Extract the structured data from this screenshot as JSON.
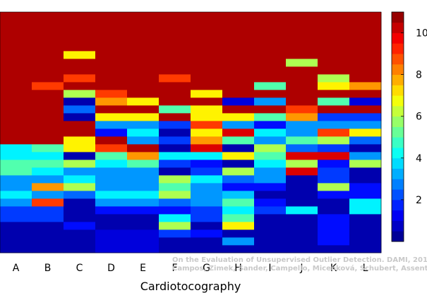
{
  "chart_data": {
    "type": "heatmap",
    "title": "",
    "xlabel": "Cardiotocography",
    "ylabel": "",
    "categories": [
      "A",
      "B",
      "C",
      "D",
      "E",
      "F",
      "G",
      "H",
      "I",
      "J",
      "K",
      "L"
    ],
    "row_count": 31,
    "value_range": [
      0,
      11
    ],
    "colorbar": {
      "ticks": [
        "2",
        "4",
        "6",
        "8",
        "10"
      ],
      "tick_values": [
        2,
        4,
        6,
        8,
        10
      ]
    },
    "columns": [
      {
        "name": "A",
        "segments": [
          [
            0,
            4,
            0.5
          ],
          [
            4,
            6,
            2
          ],
          [
            6,
            7,
            3
          ],
          [
            7,
            8,
            4
          ],
          [
            8,
            10,
            3
          ],
          [
            10,
            12,
            5
          ],
          [
            12,
            14,
            4
          ],
          [
            14,
            31,
            10.5
          ]
        ]
      },
      {
        "name": "B",
        "segments": [
          [
            0,
            4,
            0.5
          ],
          [
            4,
            6,
            2
          ],
          [
            6,
            7,
            9
          ],
          [
            7,
            8,
            3
          ],
          [
            8,
            9,
            8
          ],
          [
            9,
            10,
            3
          ],
          [
            10,
            11,
            4
          ],
          [
            11,
            12,
            5
          ],
          [
            12,
            13,
            4
          ],
          [
            13,
            14,
            5
          ],
          [
            14,
            21,
            10.5
          ],
          [
            21,
            22,
            9
          ],
          [
            22,
            31,
            10.5
          ]
        ]
      },
      {
        "name": "C",
        "segments": [
          [
            0,
            3,
            0.5
          ],
          [
            3,
            4,
            1.5
          ],
          [
            4,
            7,
            0.5
          ],
          [
            7,
            8,
            2.5
          ],
          [
            8,
            9,
            6
          ],
          [
            9,
            10,
            4
          ],
          [
            10,
            11,
            3
          ],
          [
            11,
            12,
            6
          ],
          [
            12,
            13,
            0.5
          ],
          [
            13,
            15,
            7
          ],
          [
            15,
            17,
            10.5
          ],
          [
            17,
            18,
            0.5
          ],
          [
            18,
            19,
            2.5
          ],
          [
            19,
            20,
            0.5
          ],
          [
            20,
            21,
            6
          ],
          [
            21,
            22,
            10.5
          ],
          [
            22,
            23,
            9
          ],
          [
            23,
            25,
            10.5
          ],
          [
            25,
            26,
            7
          ],
          [
            26,
            31,
            10.5
          ]
        ]
      },
      {
        "name": "D",
        "segments": [
          [
            0,
            3,
            1
          ],
          [
            3,
            5,
            0.5
          ],
          [
            5,
            6,
            1.5
          ],
          [
            6,
            7,
            3
          ],
          [
            7,
            8,
            4
          ],
          [
            8,
            9,
            3
          ],
          [
            9,
            11,
            3
          ],
          [
            11,
            12,
            4
          ],
          [
            12,
            13,
            5
          ],
          [
            13,
            14,
            9
          ],
          [
            14,
            15,
            10.5
          ],
          [
            15,
            16,
            1.5
          ],
          [
            16,
            17,
            3
          ],
          [
            17,
            18,
            7
          ],
          [
            18,
            19,
            10.5
          ],
          [
            19,
            20,
            8
          ],
          [
            20,
            21,
            9
          ],
          [
            21,
            31,
            10.5
          ]
        ]
      },
      {
        "name": "E",
        "segments": [
          [
            0,
            3,
            1
          ],
          [
            3,
            5,
            0.5
          ],
          [
            5,
            6,
            1.5
          ],
          [
            6,
            7,
            3
          ],
          [
            7,
            8,
            4
          ],
          [
            8,
            9,
            3
          ],
          [
            9,
            11,
            3
          ],
          [
            11,
            12,
            5
          ],
          [
            12,
            13,
            8
          ],
          [
            13,
            14,
            10.5
          ],
          [
            14,
            15,
            3
          ],
          [
            15,
            16,
            4
          ],
          [
            16,
            17,
            3
          ],
          [
            17,
            18,
            7
          ],
          [
            18,
            19,
            10.5
          ],
          [
            19,
            20,
            7
          ],
          [
            20,
            31,
            10.5
          ]
        ]
      },
      {
        "name": "F",
        "segments": [
          [
            0,
            1,
            0.5
          ],
          [
            1,
            2,
            0.5
          ],
          [
            2,
            3,
            2
          ],
          [
            3,
            4,
            6
          ],
          [
            4,
            5,
            4
          ],
          [
            5,
            6,
            1.5
          ],
          [
            6,
            7,
            2.5
          ],
          [
            7,
            8,
            6
          ],
          [
            8,
            9,
            5
          ],
          [
            9,
            10,
            6
          ],
          [
            10,
            11,
            0.5
          ],
          [
            11,
            12,
            2
          ],
          [
            12,
            13,
            4
          ],
          [
            13,
            14,
            0.5
          ],
          [
            14,
            15,
            2
          ],
          [
            15,
            16,
            0.5
          ],
          [
            16,
            17,
            2
          ],
          [
            17,
            18,
            10.5
          ],
          [
            18,
            19,
            5
          ],
          [
            19,
            22,
            10.5
          ],
          [
            22,
            23,
            9
          ],
          [
            23,
            31,
            10.5
          ]
        ]
      },
      {
        "name": "G",
        "segments": [
          [
            0,
            2,
            0.5
          ],
          [
            2,
            3,
            1.5
          ],
          [
            3,
            4,
            0.5
          ],
          [
            4,
            6,
            2
          ],
          [
            6,
            9,
            3
          ],
          [
            9,
            10,
            4
          ],
          [
            10,
            11,
            2
          ],
          [
            11,
            12,
            1.5
          ],
          [
            12,
            13,
            4
          ],
          [
            13,
            14,
            10
          ],
          [
            14,
            15,
            8
          ],
          [
            15,
            16,
            7
          ],
          [
            16,
            17,
            9
          ],
          [
            17,
            19,
            7
          ],
          [
            19,
            20,
            10.5
          ],
          [
            20,
            21,
            7
          ],
          [
            21,
            31,
            10.5
          ]
        ]
      },
      {
        "name": "H",
        "segments": [
          [
            0,
            1,
            0.5
          ],
          [
            1,
            2,
            3
          ],
          [
            2,
            3,
            0.5
          ],
          [
            3,
            4,
            7
          ],
          [
            4,
            5,
            5
          ],
          [
            5,
            6,
            4
          ],
          [
            6,
            7,
            5
          ],
          [
            7,
            8,
            3.5
          ],
          [
            8,
            9,
            1.5
          ],
          [
            9,
            10,
            2.5
          ],
          [
            10,
            11,
            6
          ],
          [
            11,
            12,
            0.5
          ],
          [
            12,
            13,
            7
          ],
          [
            13,
            14,
            0.5
          ],
          [
            14,
            15,
            5
          ],
          [
            15,
            16,
            10
          ],
          [
            16,
            17,
            3
          ],
          [
            17,
            18,
            7
          ],
          [
            18,
            19,
            10.5
          ],
          [
            19,
            20,
            1
          ],
          [
            20,
            31,
            10.5
          ]
        ]
      },
      {
        "name": "I",
        "segments": [
          [
            0,
            5,
            0.5
          ],
          [
            5,
            6,
            2
          ],
          [
            6,
            7,
            1.5
          ],
          [
            7,
            8,
            0.5
          ],
          [
            8,
            9,
            1.5
          ],
          [
            9,
            10,
            3
          ],
          [
            10,
            11,
            3
          ],
          [
            11,
            12,
            4
          ],
          [
            12,
            13,
            5
          ],
          [
            13,
            14,
            6
          ],
          [
            14,
            15,
            3
          ],
          [
            15,
            16,
            4
          ],
          [
            16,
            17,
            1.5
          ],
          [
            17,
            18,
            5
          ],
          [
            18,
            19,
            10.5
          ],
          [
            19,
            20,
            3
          ],
          [
            20,
            21,
            10.5
          ],
          [
            21,
            22,
            5
          ],
          [
            22,
            31,
            10.5
          ]
        ]
      },
      {
        "name": "J",
        "segments": [
          [
            0,
            5,
            0.5
          ],
          [
            5,
            6,
            4
          ],
          [
            6,
            10,
            0.5
          ],
          [
            10,
            11,
            10
          ],
          [
            11,
            12,
            6
          ],
          [
            12,
            13,
            10
          ],
          [
            13,
            14,
            2.5
          ],
          [
            14,
            15,
            5
          ],
          [
            15,
            17,
            3
          ],
          [
            17,
            18,
            8
          ],
          [
            18,
            19,
            9
          ],
          [
            19,
            24,
            10.5
          ],
          [
            24,
            25,
            6
          ],
          [
            25,
            31,
            10.5
          ]
        ]
      },
      {
        "name": "K",
        "segments": [
          [
            0,
            1,
            0.5
          ],
          [
            1,
            5,
            1.5
          ],
          [
            5,
            7,
            0.5
          ],
          [
            7,
            8,
            1.5
          ],
          [
            8,
            9,
            6
          ],
          [
            9,
            10,
            2
          ],
          [
            10,
            11,
            2
          ],
          [
            11,
            12,
            1.5
          ],
          [
            12,
            13,
            10
          ],
          [
            13,
            14,
            2
          ],
          [
            14,
            15,
            6
          ],
          [
            15,
            16,
            9
          ],
          [
            16,
            17,
            3
          ],
          [
            17,
            18,
            2
          ],
          [
            18,
            19,
            10.5
          ],
          [
            19,
            20,
            5
          ],
          [
            20,
            21,
            10.5
          ],
          [
            21,
            22,
            7
          ],
          [
            22,
            23,
            6
          ],
          [
            23,
            31,
            10.5
          ]
        ]
      },
      {
        "name": "L",
        "segments": [
          [
            0,
            5,
            0.5
          ],
          [
            5,
            7,
            4
          ],
          [
            7,
            8,
            1.5
          ],
          [
            8,
            9,
            1.5
          ],
          [
            9,
            11,
            0.5
          ],
          [
            11,
            12,
            6
          ],
          [
            12,
            13,
            3
          ],
          [
            13,
            14,
            0.5
          ],
          [
            14,
            15,
            2.5
          ],
          [
            15,
            16,
            7
          ],
          [
            16,
            17,
            3
          ],
          [
            17,
            18,
            2
          ],
          [
            18,
            19,
            10.5
          ],
          [
            19,
            20,
            1
          ],
          [
            20,
            21,
            10.5
          ],
          [
            21,
            22,
            8
          ],
          [
            22,
            31,
            10.5
          ]
        ]
      }
    ]
  },
  "watermark": {
    "line1": "On the Evaluation of Unsupervised Outlier Detection. DAMI, 2015.",
    "line2": "Campos, Zimek, Sander, Campello, Micenková, Schubert, Assent, Houle"
  }
}
